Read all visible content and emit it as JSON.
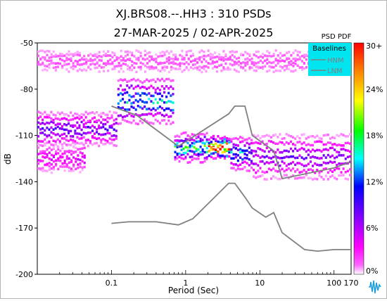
{
  "chart_data": {
    "type": "heatmap",
    "title": "XJ.BRS08.--.HH3 : 310 PSDs",
    "subtitle": "27-MAR-2025 / 02-APR-2025",
    "xlabel": "Period (Sec)",
    "ylabel": "dB",
    "x_scale": "log",
    "xlim": [
      0.01,
      170
    ],
    "ylim": [
      -200,
      -50
    ],
    "x_ticks": [
      {
        "value": 0.1,
        "label": "0.1"
      },
      {
        "value": 1,
        "label": "1"
      },
      {
        "value": 10,
        "label": "10"
      },
      {
        "value": 100,
        "label": "100"
      },
      {
        "value": 170,
        "label": "170"
      }
    ],
    "y_ticks": [
      {
        "value": -50,
        "label": "-50"
      },
      {
        "value": -80,
        "label": "-80"
      },
      {
        "value": -110,
        "label": "-110"
      },
      {
        "value": -140,
        "label": "-140"
      },
      {
        "value": -170,
        "label": "-170"
      },
      {
        "value": -200,
        "label": "-200"
      }
    ],
    "colorbar": {
      "title": "PSD PDF",
      "ticks": [
        "30+",
        "24%",
        "18%",
        "12%",
        "6%",
        "0%"
      ]
    },
    "legend": {
      "title": "Baselines",
      "entries": [
        "HNM",
        "LNM"
      ],
      "position": "top-right"
    },
    "baselines": [
      {
        "name": "HNM",
        "points": [
          [
            0.1,
            -91
          ],
          [
            0.22,
            -97
          ],
          [
            0.8,
            -117
          ],
          [
            3.8,
            -96
          ],
          [
            4.6,
            -91
          ],
          [
            6.3,
            -91
          ],
          [
            7.9,
            -110
          ],
          [
            15.4,
            -120
          ],
          [
            20,
            -138
          ],
          [
            100,
            -131
          ],
          [
            170,
            -127
          ]
        ]
      },
      {
        "name": "LNM",
        "points": [
          [
            0.1,
            -167
          ],
          [
            0.17,
            -166
          ],
          [
            0.4,
            -166
          ],
          [
            0.8,
            -168
          ],
          [
            1.25,
            -164
          ],
          [
            3.8,
            -141
          ],
          [
            4.6,
            -141
          ],
          [
            6.3,
            -150
          ],
          [
            7.9,
            -157
          ],
          [
            12,
            -163
          ],
          [
            15.4,
            -160
          ],
          [
            20,
            -173
          ],
          [
            40,
            -184
          ],
          [
            60,
            -185
          ],
          [
            100,
            -184
          ],
          [
            170,
            -184
          ]
        ]
      }
    ],
    "density_bands": [
      {
        "period_start": 0.01,
        "period_end": 170,
        "db_center": -62,
        "db_spread": 5,
        "peak_pct": 2
      },
      {
        "period_start": 0.01,
        "period_end": 0.045,
        "db_center": -125,
        "db_spread": 5,
        "peak_pct": 5
      },
      {
        "period_start": 0.01,
        "period_end": 0.12,
        "db_center": -106,
        "db_spread": 6,
        "peak_pct": 9
      },
      {
        "period_start": 0.12,
        "period_end": 0.7,
        "db_center": -88,
        "db_spread": 8,
        "peak_pct": 15
      },
      {
        "period_start": 0.7,
        "period_end": 2.0,
        "db_center": -118,
        "db_spread": 5,
        "peak_pct": 18
      },
      {
        "period_start": 2.0,
        "period_end": 4.0,
        "db_center": -118,
        "db_spread": 4,
        "peak_pct": 30
      },
      {
        "period_start": 4.0,
        "period_end": 8.0,
        "db_center": -122,
        "db_spread": 6,
        "peak_pct": 14
      },
      {
        "period_start": 8.0,
        "period_end": 170,
        "db_center": -124,
        "db_spread": 8,
        "peak_pct": 8
      }
    ],
    "grid": false
  },
  "colors": {
    "baseline": "#808080",
    "legend_bg": "#00e5f0",
    "colorscale": [
      "#ffffff",
      "#ff00ff",
      "#8000ff",
      "#0000ff",
      "#00ffff",
      "#00ff00",
      "#ffff00",
      "#ff0000"
    ]
  },
  "icons": [
    "seismic-logo-icon"
  ]
}
